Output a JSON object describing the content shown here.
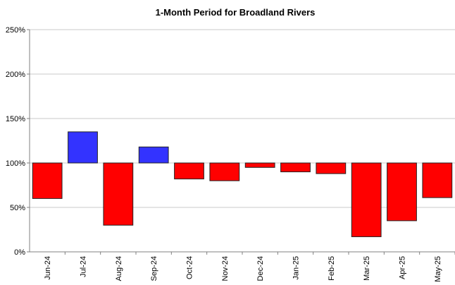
{
  "chart_data": {
    "type": "bar",
    "title": "1-Month Period for Broadland Rivers",
    "xlabel": "",
    "ylabel": "",
    "baseline": 100,
    "ylim": [
      0,
      250
    ],
    "yticks": [
      0,
      50,
      100,
      150,
      200,
      250
    ],
    "ytick_labels": [
      "0%",
      "50%",
      "100%",
      "150%",
      "200%",
      "250%"
    ],
    "grid": true,
    "categories": [
      "Jun-24",
      "Jul-24",
      "Aug-24",
      "Sep-24",
      "Oct-24",
      "Nov-24",
      "Dec-24",
      "Jan-25",
      "Feb-25",
      "Mar-25",
      "Apr-25",
      "May-25"
    ],
    "values": [
      60,
      135,
      30,
      118,
      82,
      80,
      95,
      90,
      88,
      17,
      35,
      61
    ],
    "colors": {
      "above_baseline": "#3333ff",
      "below_baseline": "#ff0000",
      "grid": "#c8c8c8",
      "axis": "#808080",
      "bar_outline": "#222222"
    }
  }
}
